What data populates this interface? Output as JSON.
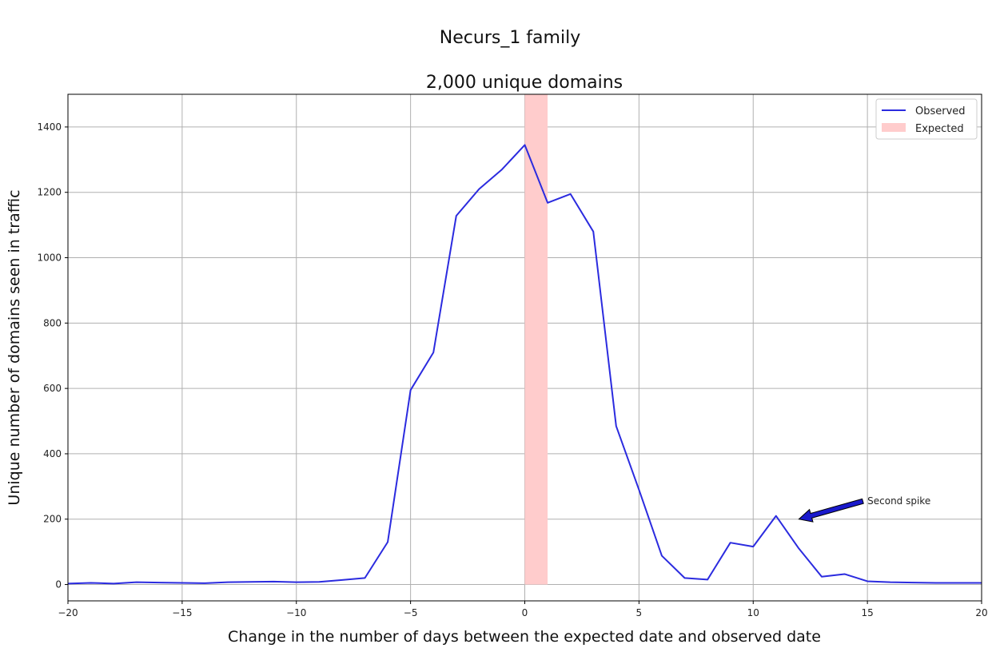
{
  "chart_data": {
    "type": "line",
    "title": "Necurs_1 family",
    "subtitle": "2,000 unique domains",
    "xlabel": "Change in the number of days between the expected date and observed date",
    "ylabel": "Unique number of domains seen in traffic",
    "xlim": [
      -20,
      20
    ],
    "ylim": [
      -50,
      1500
    ],
    "xticks": [
      -20,
      -15,
      -10,
      -5,
      0,
      5,
      10,
      15,
      20
    ],
    "xtick_labels": [
      "−20",
      "−15",
      "−10",
      "−5",
      "0",
      "5",
      "10",
      "15",
      "20"
    ],
    "yticks": [
      0,
      200,
      400,
      600,
      800,
      1000,
      1200,
      1400
    ],
    "ytick_labels": [
      "0",
      "200",
      "400",
      "600",
      "800",
      "1000",
      "1200",
      "1400"
    ],
    "grid": true,
    "legend_placement": "top-right",
    "series": [
      {
        "name": "Observed",
        "color": "#2b2bdf",
        "x": [
          -20,
          -19,
          -18,
          -17,
          -16,
          -15,
          -14,
          -13,
          -12,
          -11,
          -10,
          -9,
          -8,
          -7,
          -6,
          -5,
          -4,
          -3,
          -2,
          -1,
          0,
          1,
          2,
          3,
          4,
          5,
          6,
          7,
          8,
          9,
          10,
          11,
          12,
          13,
          14,
          15,
          16,
          17,
          18,
          19,
          20
        ],
        "y": [
          3,
          5,
          3,
          7,
          6,
          5,
          4,
          7,
          8,
          9,
          7,
          8,
          14,
          20,
          130,
          595,
          710,
          1128,
          1210,
          1270,
          1345,
          1168,
          1195,
          1080,
          485,
          290,
          88,
          20,
          15,
          128,
          116,
          210,
          110,
          24,
          32,
          10,
          7,
          6,
          5,
          5,
          5
        ]
      }
    ],
    "expected_band": {
      "name": "Expected",
      "x_start": 0,
      "x_end": 1,
      "color": "#ffcccc"
    },
    "annotation": {
      "text": "Second spike",
      "text_xy": [
        15,
        255
      ],
      "arrow_tail": [
        14.8,
        255
      ],
      "arrow_head": [
        12,
        200
      ],
      "color": "#1a1acc"
    }
  }
}
